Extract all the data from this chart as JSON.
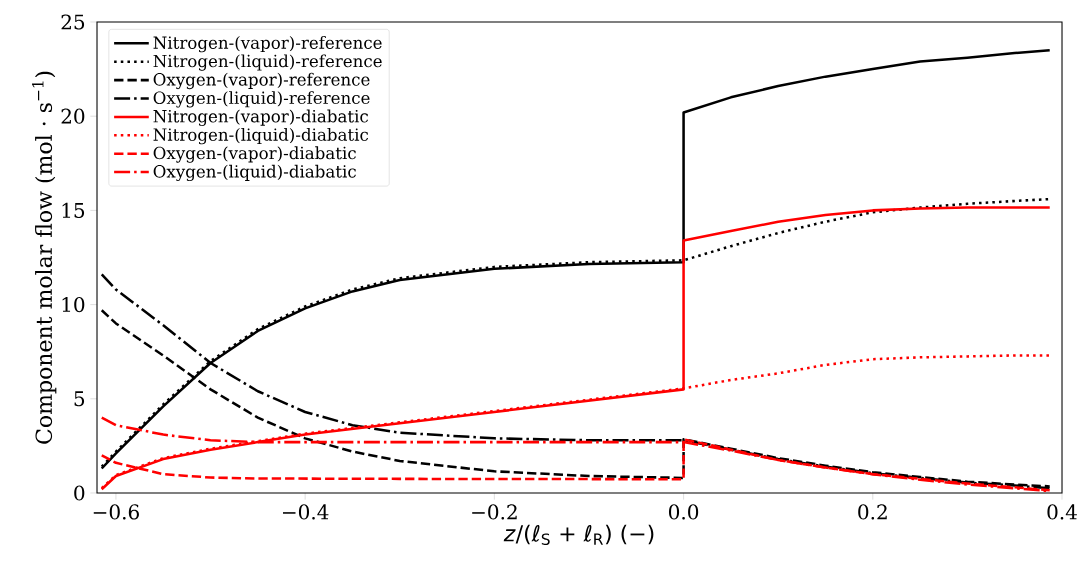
{
  "chart_data": {
    "type": "line",
    "xlabel": "*z*/(ℓ$_{S}$ + ℓ$_{R}$) (−)",
    "ylabel": "Component molar flow (mol · s$^{−1}$)",
    "xlim": [
      -0.62,
      0.4
    ],
    "ylim": [
      0,
      25
    ],
    "xticks": [
      {
        "value": -0.6,
        "label": "−0.6"
      },
      {
        "value": -0.4,
        "label": "−0.4"
      },
      {
        "value": -0.2,
        "label": "−0.2"
      },
      {
        "value": 0,
        "label": "0.0"
      },
      {
        "value": 0.2,
        "label": "0.2"
      },
      {
        "value": 0.4,
        "label": "0.4"
      }
    ],
    "yticks": [
      0,
      5,
      10,
      15,
      20,
      25
    ],
    "legend": "top left",
    "grid": false,
    "series": [
      {
        "name": "Nitrogen-(vapor)-reference",
        "color": "#000000",
        "line_style": "solid",
        "x": [
          -0.615,
          -0.6,
          -0.55,
          -0.5,
          -0.45,
          -0.4,
          -0.35,
          -0.3,
          -0.2,
          -0.1,
          0,
          0,
          0.05,
          0.1,
          0.15,
          0.2,
          0.25,
          0.3,
          0.35,
          0.387
        ],
        "values": [
          1.3,
          2.1,
          4.6,
          6.9,
          8.6,
          9.8,
          10.7,
          11.3,
          11.9,
          12.15,
          12.25,
          20.2,
          21.0,
          21.6,
          22.1,
          22.5,
          22.9,
          23.1,
          23.35,
          23.5
        ]
      },
      {
        "name": "Nitrogen-(liquid)-reference",
        "color": "#000000",
        "line_style": "dotted",
        "x": [
          -0.615,
          -0.6,
          -0.55,
          -0.5,
          -0.45,
          -0.4,
          -0.35,
          -0.3,
          -0.2,
          -0.1,
          0,
          0.05,
          0.1,
          0.15,
          0.2,
          0.25,
          0.3,
          0.35,
          0.387
        ],
        "values": [
          1.4,
          2.2,
          4.7,
          7.0,
          8.7,
          9.9,
          10.8,
          11.4,
          12.0,
          12.25,
          12.35,
          13.1,
          13.8,
          14.4,
          14.9,
          15.15,
          15.35,
          15.5,
          15.6
        ]
      },
      {
        "name": "Oxygen-(vapor)-reference",
        "color": "#000000",
        "line_style": "dashed",
        "x": [
          -0.615,
          -0.6,
          -0.55,
          -0.5,
          -0.45,
          -0.4,
          -0.35,
          -0.3,
          -0.2,
          -0.1,
          0,
          0,
          0.05,
          0.1,
          0.15,
          0.2,
          0.25,
          0.3,
          0.35,
          0.387
        ],
        "values": [
          9.7,
          9.0,
          7.3,
          5.5,
          4.0,
          2.9,
          2.2,
          1.7,
          1.15,
          0.9,
          0.8,
          2.85,
          2.35,
          1.85,
          1.45,
          1.1,
          0.85,
          0.6,
          0.45,
          0.35
        ]
      },
      {
        "name": "Oxygen-(liquid)-reference",
        "color": "#000000",
        "line_style": "dashdot",
        "x": [
          -0.615,
          -0.6,
          -0.55,
          -0.5,
          -0.45,
          -0.4,
          -0.35,
          -0.3,
          -0.2,
          -0.1,
          0,
          0.05,
          0.1,
          0.15,
          0.2,
          0.25,
          0.3,
          0.35,
          0.387
        ],
        "values": [
          11.6,
          10.8,
          8.9,
          6.9,
          5.4,
          4.3,
          3.6,
          3.2,
          2.9,
          2.8,
          2.8,
          2.3,
          1.8,
          1.4,
          1.05,
          0.8,
          0.55,
          0.4,
          0.25
        ]
      },
      {
        "name": "Nitrogen-(vapor)-diabatic",
        "color": "#ff0000",
        "line_style": "solid",
        "x": [
          -0.615,
          -0.6,
          -0.55,
          -0.5,
          -0.45,
          -0.4,
          -0.3,
          -0.2,
          -0.1,
          0,
          0,
          0.05,
          0.1,
          0.15,
          0.2,
          0.25,
          0.3,
          0.35,
          0.387
        ],
        "values": [
          0.2,
          0.9,
          1.8,
          2.3,
          2.7,
          3.1,
          3.7,
          4.3,
          4.9,
          5.5,
          13.4,
          13.9,
          14.4,
          14.75,
          15.0,
          15.1,
          15.15,
          15.15,
          15.15
        ]
      },
      {
        "name": "Nitrogen-(liquid)-diabatic",
        "color": "#ff0000",
        "line_style": "dotted",
        "x": [
          -0.615,
          -0.6,
          -0.55,
          -0.5,
          -0.45,
          -0.4,
          -0.3,
          -0.2,
          -0.1,
          0,
          0.05,
          0.1,
          0.15,
          0.2,
          0.25,
          0.3,
          0.35,
          0.387
        ],
        "values": [
          0.25,
          0.95,
          1.85,
          2.35,
          2.75,
          3.15,
          3.75,
          4.35,
          4.95,
          5.55,
          6.0,
          6.35,
          6.8,
          7.1,
          7.2,
          7.25,
          7.3,
          7.3
        ]
      },
      {
        "name": "Oxygen-(vapor)-diabatic",
        "color": "#ff0000",
        "line_style": "dashed",
        "x": [
          -0.615,
          -0.6,
          -0.55,
          -0.5,
          -0.45,
          -0.3,
          0,
          0,
          0.05,
          0.1,
          0.15,
          0.2,
          0.25,
          0.3,
          0.35,
          0.387
        ],
        "values": [
          2.0,
          1.6,
          1.0,
          0.82,
          0.77,
          0.75,
          0.73,
          2.85,
          2.3,
          1.75,
          1.35,
          1.0,
          0.75,
          0.5,
          0.3,
          0.15
        ]
      },
      {
        "name": "Oxygen-(liquid)-diabatic",
        "color": "#ff0000",
        "line_style": "dashdot",
        "x": [
          -0.615,
          -0.6,
          -0.55,
          -0.5,
          -0.45,
          -0.4,
          -0.3,
          -0.2,
          -0.1,
          0,
          0.05,
          0.1,
          0.15,
          0.2,
          0.25,
          0.3,
          0.35,
          0.387
        ],
        "values": [
          4.0,
          3.6,
          3.1,
          2.8,
          2.7,
          2.7,
          2.7,
          2.7,
          2.7,
          2.7,
          2.25,
          1.75,
          1.35,
          1.0,
          0.7,
          0.45,
          0.25,
          0.1
        ]
      }
    ]
  }
}
